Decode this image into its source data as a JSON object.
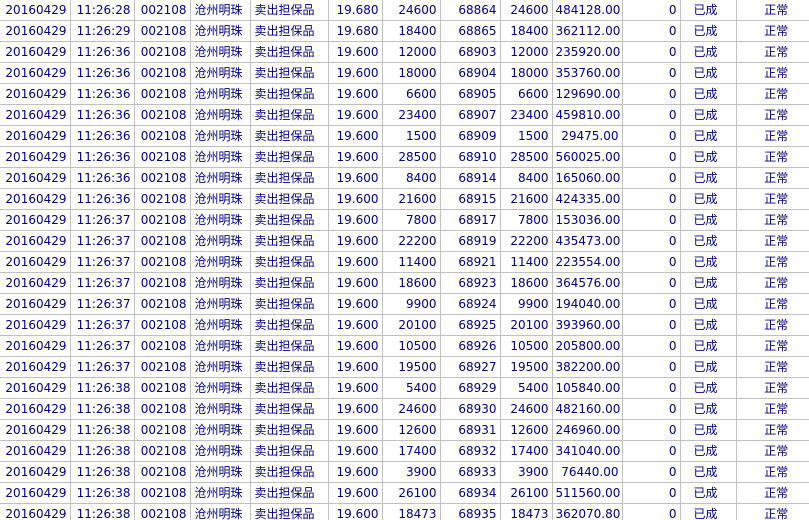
{
  "trades": {
    "rows": [
      [
        "20160429",
        "11:26:28",
        "002108",
        "沧州明珠",
        "卖出担保品",
        "19.680",
        "24600",
        "68864",
        "24600",
        "484128.00",
        "0",
        "已成",
        "正常"
      ],
      [
        "20160429",
        "11:26:29",
        "002108",
        "沧州明珠",
        "卖出担保品",
        "19.680",
        "18400",
        "68865",
        "18400",
        "362112.00",
        "0",
        "已成",
        "正常"
      ],
      [
        "20160429",
        "11:26:36",
        "002108",
        "沧州明珠",
        "卖出担保品",
        "19.600",
        "12000",
        "68903",
        "12000",
        "235920.00",
        "0",
        "已成",
        "正常"
      ],
      [
        "20160429",
        "11:26:36",
        "002108",
        "沧州明珠",
        "卖出担保品",
        "19.600",
        "18000",
        "68904",
        "18000",
        "353760.00",
        "0",
        "已成",
        "正常"
      ],
      [
        "20160429",
        "11:26:36",
        "002108",
        "沧州明珠",
        "卖出担保品",
        "19.600",
        "6600",
        "68905",
        "6600",
        "129690.00",
        "0",
        "已成",
        "正常"
      ],
      [
        "20160429",
        "11:26:36",
        "002108",
        "沧州明珠",
        "卖出担保品",
        "19.600",
        "23400",
        "68907",
        "23400",
        "459810.00",
        "0",
        "已成",
        "正常"
      ],
      [
        "20160429",
        "11:26:36",
        "002108",
        "沧州明珠",
        "卖出担保品",
        "19.600",
        "1500",
        "68909",
        "1500",
        "29475.00",
        "0",
        "已成",
        "正常"
      ],
      [
        "20160429",
        "11:26:36",
        "002108",
        "沧州明珠",
        "卖出担保品",
        "19.600",
        "28500",
        "68910",
        "28500",
        "560025.00",
        "0",
        "已成",
        "正常"
      ],
      [
        "20160429",
        "11:26:36",
        "002108",
        "沧州明珠",
        "卖出担保品",
        "19.600",
        "8400",
        "68914",
        "8400",
        "165060.00",
        "0",
        "已成",
        "正常"
      ],
      [
        "20160429",
        "11:26:36",
        "002108",
        "沧州明珠",
        "卖出担保品",
        "19.600",
        "21600",
        "68915",
        "21600",
        "424335.00",
        "0",
        "已成",
        "正常"
      ],
      [
        "20160429",
        "11:26:37",
        "002108",
        "沧州明珠",
        "卖出担保品",
        "19.600",
        "7800",
        "68917",
        "7800",
        "153036.00",
        "0",
        "已成",
        "正常"
      ],
      [
        "20160429",
        "11:26:37",
        "002108",
        "沧州明珠",
        "卖出担保品",
        "19.600",
        "22200",
        "68919",
        "22200",
        "435473.00",
        "0",
        "已成",
        "正常"
      ],
      [
        "20160429",
        "11:26:37",
        "002108",
        "沧州明珠",
        "卖出担保品",
        "19.600",
        "11400",
        "68921",
        "11400",
        "223554.00",
        "0",
        "已成",
        "正常"
      ],
      [
        "20160429",
        "11:26:37",
        "002108",
        "沧州明珠",
        "卖出担保品",
        "19.600",
        "18600",
        "68923",
        "18600",
        "364576.00",
        "0",
        "已成",
        "正常"
      ],
      [
        "20160429",
        "11:26:37",
        "002108",
        "沧州明珠",
        "卖出担保品",
        "19.600",
        "9900",
        "68924",
        "9900",
        "194040.00",
        "0",
        "已成",
        "正常"
      ],
      [
        "20160429",
        "11:26:37",
        "002108",
        "沧州明珠",
        "卖出担保品",
        "19.600",
        "20100",
        "68925",
        "20100",
        "393960.00",
        "0",
        "已成",
        "正常"
      ],
      [
        "20160429",
        "11:26:37",
        "002108",
        "沧州明珠",
        "卖出担保品",
        "19.600",
        "10500",
        "68926",
        "10500",
        "205800.00",
        "0",
        "已成",
        "正常"
      ],
      [
        "20160429",
        "11:26:37",
        "002108",
        "沧州明珠",
        "卖出担保品",
        "19.600",
        "19500",
        "68927",
        "19500",
        "382200.00",
        "0",
        "已成",
        "正常"
      ],
      [
        "20160429",
        "11:26:38",
        "002108",
        "沧州明珠",
        "卖出担保品",
        "19.600",
        "5400",
        "68929",
        "5400",
        "105840.00",
        "0",
        "已成",
        "正常"
      ],
      [
        "20160429",
        "11:26:38",
        "002108",
        "沧州明珠",
        "卖出担保品",
        "19.600",
        "24600",
        "68930",
        "24600",
        "482160.00",
        "0",
        "已成",
        "正常"
      ],
      [
        "20160429",
        "11:26:38",
        "002108",
        "沧州明珠",
        "卖出担保品",
        "19.600",
        "12600",
        "68931",
        "12600",
        "246960.00",
        "0",
        "已成",
        "正常"
      ],
      [
        "20160429",
        "11:26:38",
        "002108",
        "沧州明珠",
        "卖出担保品",
        "19.600",
        "17400",
        "68932",
        "17400",
        "341040.00",
        "0",
        "已成",
        "正常"
      ],
      [
        "20160429",
        "11:26:38",
        "002108",
        "沧州明珠",
        "卖出担保品",
        "19.600",
        "3900",
        "68933",
        "3900",
        "76440.00",
        "0",
        "已成",
        "正常"
      ],
      [
        "20160429",
        "11:26:38",
        "002108",
        "沧州明珠",
        "卖出担保品",
        "19.600",
        "26100",
        "68934",
        "26100",
        "511560.00",
        "0",
        "已成",
        "正常"
      ],
      [
        "20160429",
        "11:26:38",
        "002108",
        "沧州明珠",
        "卖出担保品",
        "19.600",
        "18473",
        "68935",
        "18473",
        "362070.80",
        "0",
        "已成",
        "正常"
      ]
    ]
  },
  "colors": {
    "text": "#000080",
    "gridline": "#c0c0c0",
    "background": "#ffffff"
  }
}
